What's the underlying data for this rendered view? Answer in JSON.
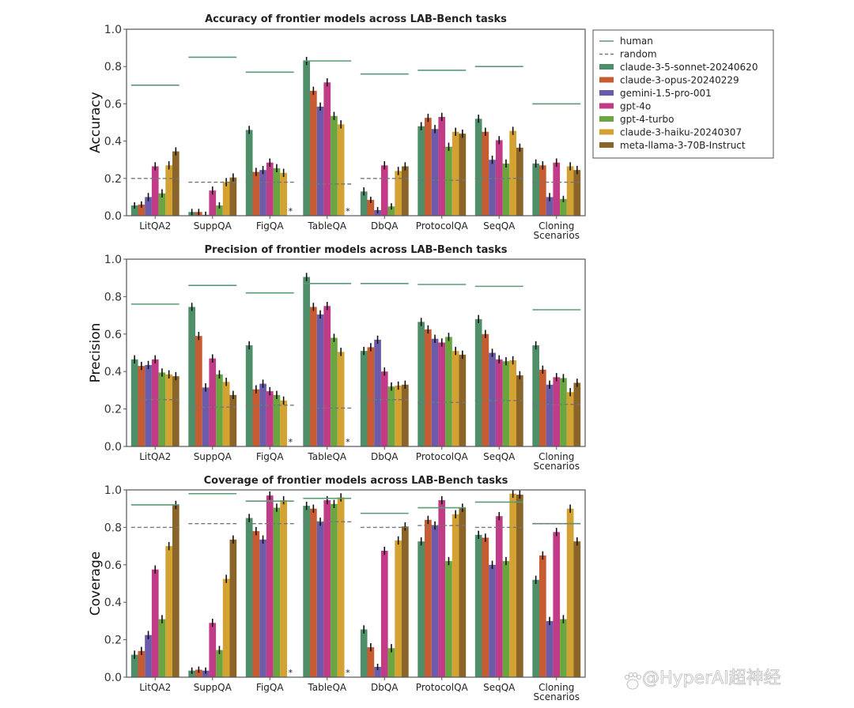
{
  "chart_data": [
    {
      "type": "bar",
      "title": "Accuracy of frontier models across LAB-Bench tasks",
      "xlabel": "",
      "ylabel": "Accuracy",
      "ylim": [
        0,
        1.0
      ],
      "yticks": [
        "0.0",
        "0.2",
        "0.4",
        "0.6",
        "0.8",
        "1.0"
      ],
      "categories": [
        "LitQA2",
        "SuppQA",
        "FigQA",
        "TableQA",
        "DbQA",
        "ProtocolQA",
        "SeqQA",
        "Cloning\nScenarios"
      ],
      "human": [
        0.7,
        0.85,
        0.77,
        0.83,
        0.76,
        0.78,
        0.8,
        0.6
      ],
      "random": [
        0.2,
        0.18,
        0.18,
        0.17,
        0.2,
        0.19,
        0.2,
        0.18
      ],
      "series": [
        {
          "name": "claude-3-5-sonnet-20240620",
          "values": [
            0.055,
            0.02,
            0.46,
            0.83,
            0.13,
            0.48,
            0.52,
            0.28
          ]
        },
        {
          "name": "claude-3-opus-20240229",
          "values": [
            0.06,
            0.02,
            0.235,
            0.67,
            0.085,
            0.525,
            0.45,
            0.27
          ]
        },
        {
          "name": "gemini-1.5-pro-001",
          "values": [
            0.1,
            0.005,
            0.245,
            0.585,
            0.03,
            0.465,
            0.3,
            0.1
          ]
        },
        {
          "name": "gpt-4o",
          "values": [
            0.265,
            0.135,
            0.285,
            0.715,
            0.27,
            0.53,
            0.405,
            0.285
          ]
        },
        {
          "name": "gpt-4-turbo",
          "values": [
            0.12,
            0.055,
            0.255,
            0.535,
            0.05,
            0.37,
            0.28,
            0.09
          ]
        },
        {
          "name": "claude-3-haiku-20240307",
          "values": [
            0.27,
            0.18,
            0.23,
            0.49,
            0.24,
            0.45,
            0.455,
            0.265
          ]
        },
        {
          "name": "meta-llama-3-70B-Instruct",
          "values": [
            0.345,
            0.205,
            null,
            null,
            0.265,
            0.44,
            0.365,
            0.245
          ]
        }
      ],
      "missing_marker": "*",
      "missing": [
        {
          "category": "FigQA",
          "series": "meta-llama-3-70B-Instruct"
        },
        {
          "category": "TableQA",
          "series": "meta-llama-3-70B-Instruct"
        }
      ],
      "grid": false,
      "legend": "right"
    },
    {
      "type": "bar",
      "title": "Precision of frontier models across LAB-Bench tasks",
      "xlabel": "",
      "ylabel": "Precision",
      "ylim": [
        0,
        1.0
      ],
      "yticks": [
        "0.0",
        "0.2",
        "0.4",
        "0.6",
        "0.8",
        "1.0"
      ],
      "categories": [
        "LitQA2",
        "SuppQA",
        "FigQA",
        "TableQA",
        "DbQA",
        "ProtocolQA",
        "SeqQA",
        "Cloning\nScenarios"
      ],
      "human": [
        0.76,
        0.86,
        0.82,
        0.87,
        0.87,
        0.865,
        0.855,
        0.73
      ],
      "random": [
        0.25,
        0.21,
        0.22,
        0.205,
        0.25,
        0.235,
        0.245,
        0.225
      ],
      "series": [
        {
          "name": "claude-3-5-sonnet-20240620",
          "values": [
            0.465,
            0.745,
            0.54,
            0.905,
            0.51,
            0.665,
            0.68,
            0.54
          ]
        },
        {
          "name": "claude-3-opus-20240229",
          "values": [
            0.43,
            0.59,
            0.305,
            0.745,
            0.53,
            0.625,
            0.6,
            0.41
          ]
        },
        {
          "name": "gemini-1.5-pro-001",
          "values": [
            0.435,
            0.315,
            0.335,
            0.705,
            0.57,
            0.575,
            0.5,
            0.33
          ]
        },
        {
          "name": "gpt-4o",
          "values": [
            0.465,
            0.47,
            0.295,
            0.75,
            0.4,
            0.555,
            0.465,
            0.37
          ]
        },
        {
          "name": "gpt-4-turbo",
          "values": [
            0.395,
            0.385,
            0.275,
            0.58,
            0.32,
            0.585,
            0.455,
            0.365
          ]
        },
        {
          "name": "claude-3-haiku-20240307",
          "values": [
            0.385,
            0.345,
            0.245,
            0.505,
            0.325,
            0.51,
            0.46,
            0.29
          ]
        },
        {
          "name": "meta-llama-3-70B-Instruct",
          "values": [
            0.375,
            0.275,
            null,
            null,
            0.33,
            0.49,
            0.38,
            0.34
          ]
        }
      ],
      "missing_marker": "*",
      "missing": [
        {
          "category": "FigQA",
          "series": "meta-llama-3-70B-Instruct"
        },
        {
          "category": "TableQA",
          "series": "meta-llama-3-70B-Instruct"
        }
      ],
      "grid": false
    },
    {
      "type": "bar",
      "title": "Coverage of frontier models across LAB-Bench tasks",
      "xlabel": "",
      "ylabel": "Coverage",
      "ylim": [
        0,
        1.0
      ],
      "yticks": [
        "0.0",
        "0.2",
        "0.4",
        "0.6",
        "0.8",
        "1.0"
      ],
      "categories": [
        "LitQA2",
        "SuppQA",
        "FigQA",
        "TableQA",
        "DbQA",
        "ProtocolQA",
        "SeqQA",
        "Cloning\nScenarios"
      ],
      "human": [
        0.92,
        0.98,
        0.94,
        0.955,
        0.875,
        0.905,
        0.935,
        0.82
      ],
      "random": [
        0.8,
        0.82,
        0.82,
        0.83,
        0.8,
        0.81,
        0.8,
        0.82
      ],
      "series": [
        {
          "name": "claude-3-5-sonnet-20240620",
          "values": [
            0.12,
            0.035,
            0.85,
            0.915,
            0.255,
            0.725,
            0.76,
            0.52
          ]
        },
        {
          "name": "claude-3-opus-20240229",
          "values": [
            0.14,
            0.04,
            0.78,
            0.9,
            0.16,
            0.84,
            0.745,
            0.65
          ]
        },
        {
          "name": "gemini-1.5-pro-001",
          "values": [
            0.225,
            0.035,
            0.735,
            0.83,
            0.055,
            0.81,
            0.6,
            0.3
          ]
        },
        {
          "name": "gpt-4o",
          "values": [
            0.575,
            0.29,
            0.97,
            0.945,
            0.675,
            0.945,
            0.86,
            0.775
          ]
        },
        {
          "name": "gpt-4-turbo",
          "values": [
            0.31,
            0.145,
            0.905,
            0.925,
            0.155,
            0.62,
            0.62,
            0.31
          ]
        },
        {
          "name": "claude-3-haiku-20240307",
          "values": [
            0.7,
            0.525,
            0.945,
            0.96,
            0.73,
            0.87,
            0.98,
            0.9
          ]
        },
        {
          "name": "meta-llama-3-70B-Instruct",
          "values": [
            0.92,
            0.735,
            null,
            null,
            0.805,
            0.905,
            0.975,
            0.725
          ]
        }
      ],
      "missing_marker": "*",
      "missing": [
        {
          "category": "FigQA",
          "series": "meta-llama-3-70B-Instruct"
        },
        {
          "category": "TableQA",
          "series": "meta-llama-3-70B-Instruct"
        }
      ],
      "grid": false
    }
  ],
  "legend": {
    "items": [
      {
        "label": "human",
        "kind": "line",
        "color": "#5a9a78"
      },
      {
        "label": "random",
        "kind": "dashed",
        "color": "#777777"
      },
      {
        "label": "claude-3-5-sonnet-20240620",
        "kind": "patch",
        "color": "#4e8e69"
      },
      {
        "label": "claude-3-opus-20240229",
        "kind": "patch",
        "color": "#c75b32"
      },
      {
        "label": "gemini-1.5-pro-001",
        "kind": "patch",
        "color": "#6b5ba8"
      },
      {
        "label": "gpt-4o",
        "kind": "patch",
        "color": "#c23b86"
      },
      {
        "label": "gpt-4-turbo",
        "kind": "patch",
        "color": "#6aa63f"
      },
      {
        "label": "claude-3-haiku-20240307",
        "kind": "patch",
        "color": "#d4a233"
      },
      {
        "label": "meta-llama-3-70B-Instruct",
        "kind": "patch",
        "color": "#8a6428"
      }
    ]
  },
  "colors": {
    "human": "#5a9a78",
    "random": "#777777",
    "errorbar": "#111111",
    "axis": "#555555"
  },
  "watermark": {
    "text": "@HyperAI超神经",
    "icon": "baidu-paw-icon"
  }
}
